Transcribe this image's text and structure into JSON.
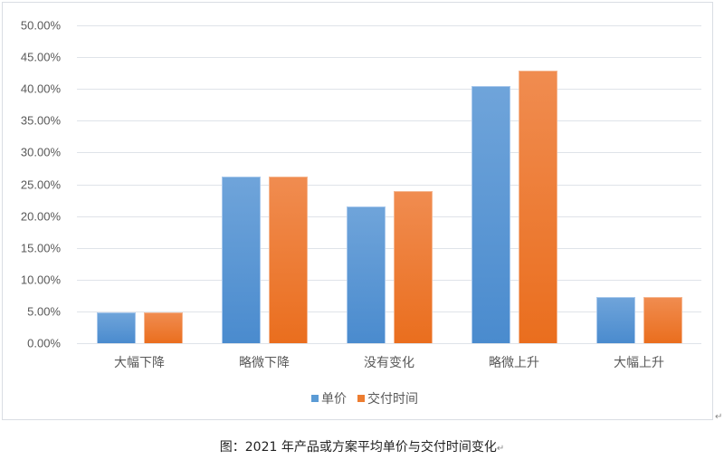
{
  "chart_data": {
    "type": "bar",
    "title": "",
    "xlabel": "",
    "ylabel": "",
    "categories": [
      "大幅下降",
      "略微下降",
      "没有变化",
      "略微上升",
      "大幅上升"
    ],
    "series": [
      {
        "name": "单价",
        "color": "#5b9bd5",
        "values": [
          4.8,
          26.2,
          21.5,
          40.5,
          7.2
        ]
      },
      {
        "name": "交付时间",
        "color": "#ed7d31",
        "values": [
          4.8,
          26.2,
          23.9,
          42.9,
          7.2
        ]
      }
    ],
    "ylim": [
      0,
      50
    ],
    "yticks": [
      "0.00%",
      "5.00%",
      "10.00%",
      "15.00%",
      "20.00%",
      "25.00%",
      "30.00%",
      "35.00%",
      "40.00%",
      "45.00%",
      "50.00%"
    ],
    "grid": true,
    "legend_position": "bottom",
    "value_unit": "%"
  },
  "caption": "图：2021 年产品或方案平均单价与交付时间变化",
  "paragraph_mark": "↵"
}
